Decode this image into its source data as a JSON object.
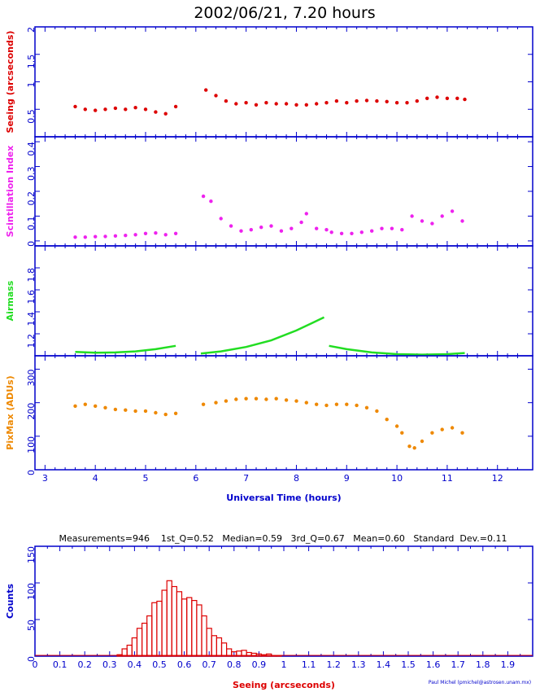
{
  "title": "2002/06/21, 7.20 hours",
  "colors": {
    "axis": "#0000cc",
    "seeing": "#dd0000",
    "scint": "#ee22ee",
    "airmass": "#22dd22",
    "pixmax": "#ee8800",
    "hist": "#dd0000"
  },
  "chart_data": [
    {
      "type": "scatter",
      "name": "seeing-panel",
      "ylabel": "Seeing (arcseconds)",
      "ylim": [
        0,
        2
      ],
      "yticks": [
        "0.5",
        "1",
        "1.5",
        "2"
      ],
      "xlim": [
        2.8,
        12.7
      ],
      "x": [
        3.6,
        3.8,
        4.0,
        4.2,
        4.4,
        4.6,
        4.8,
        5.0,
        5.2,
        5.4,
        5.6,
        6.2,
        6.4,
        6.6,
        6.8,
        7.0,
        7.2,
        7.4,
        7.6,
        7.8,
        8.0,
        8.2,
        8.4,
        8.6,
        8.8,
        9.0,
        9.2,
        9.4,
        9.6,
        9.8,
        10.0,
        10.2,
        10.4,
        10.6,
        10.8,
        11.0,
        11.2,
        11.35
      ],
      "y": [
        0.55,
        0.5,
        0.48,
        0.5,
        0.52,
        0.5,
        0.53,
        0.5,
        0.45,
        0.42,
        0.55,
        0.85,
        0.75,
        0.65,
        0.6,
        0.62,
        0.58,
        0.62,
        0.6,
        0.6,
        0.58,
        0.58,
        0.6,
        0.62,
        0.65,
        0.62,
        0.65,
        0.66,
        0.65,
        0.64,
        0.62,
        0.62,
        0.65,
        0.7,
        0.72,
        0.7,
        0.7,
        0.68
      ]
    },
    {
      "type": "scatter",
      "name": "scintillation-panel",
      "ylabel": "Scintillation Index",
      "ylim": [
        -0.02,
        0.42
      ],
      "yticks": [
        "0",
        "0.1",
        "0.2",
        "0.3",
        "0.4"
      ],
      "xlim": [
        2.8,
        12.7
      ],
      "x": [
        3.6,
        3.8,
        4.0,
        4.2,
        4.4,
        4.6,
        4.8,
        5.0,
        5.2,
        5.4,
        5.6,
        6.15,
        6.3,
        6.5,
        6.7,
        6.9,
        7.1,
        7.3,
        7.5,
        7.7,
        7.9,
        8.1,
        8.2,
        8.4,
        8.6,
        8.7,
        8.9,
        9.1,
        9.3,
        9.5,
        9.7,
        9.9,
        10.1,
        10.3,
        10.5,
        10.7,
        10.9,
        11.1,
        11.3
      ],
      "y": [
        0.015,
        0.015,
        0.017,
        0.018,
        0.02,
        0.022,
        0.025,
        0.03,
        0.032,
        0.025,
        0.03,
        0.18,
        0.16,
        0.09,
        0.06,
        0.04,
        0.045,
        0.055,
        0.06,
        0.04,
        0.05,
        0.075,
        0.11,
        0.05,
        0.045,
        0.035,
        0.03,
        0.03,
        0.035,
        0.04,
        0.05,
        0.05,
        0.045,
        0.1,
        0.08,
        0.07,
        0.1,
        0.12,
        0.08
      ]
    },
    {
      "type": "line",
      "name": "airmass-panel",
      "ylabel": "Airmass",
      "ylim": [
        1,
        2
      ],
      "yticks": [
        "1.2",
        "1.4",
        "1.6",
        "1.8"
      ],
      "xlim": [
        2.8,
        12.7
      ],
      "series": [
        {
          "x": [
            3.6,
            4.0,
            4.4,
            4.8,
            5.2,
            5.6
          ],
          "y": [
            1.035,
            1.028,
            1.03,
            1.04,
            1.06,
            1.09
          ]
        },
        {
          "x": [
            6.1,
            6.5,
            7.0,
            7.5,
            8.0,
            8.55
          ],
          "y": [
            1.02,
            1.04,
            1.08,
            1.14,
            1.23,
            1.35
          ]
        },
        {
          "x": [
            8.65,
            9.0,
            9.5,
            10.0,
            10.5,
            11.0,
            11.35
          ],
          "y": [
            1.09,
            1.06,
            1.03,
            1.015,
            1.01,
            1.015,
            1.025
          ]
        }
      ]
    },
    {
      "type": "scatter",
      "name": "pixmax-panel",
      "ylabel": "PixMax (ADUs)",
      "xlabel": "Universal Time (hours)",
      "ylim": [
        0,
        340
      ],
      "yticks": [
        "0",
        "100",
        "200",
        "300"
      ],
      "xlim": [
        2.8,
        12.7
      ],
      "xticks": [
        "3",
        "4",
        "5",
        "6",
        "7",
        "8",
        "9",
        "10",
        "11",
        "12"
      ],
      "x": [
        3.6,
        3.8,
        4.0,
        4.2,
        4.4,
        4.6,
        4.8,
        5.0,
        5.2,
        5.4,
        5.6,
        6.15,
        6.4,
        6.6,
        6.8,
        7.0,
        7.2,
        7.4,
        7.6,
        7.8,
        8.0,
        8.2,
        8.4,
        8.6,
        8.8,
        9.0,
        9.2,
        9.4,
        9.6,
        9.8,
        10.0,
        10.1,
        10.25,
        10.35,
        10.5,
        10.7,
        10.9,
        11.1,
        11.3
      ],
      "y": [
        190,
        195,
        190,
        185,
        180,
        178,
        175,
        175,
        170,
        165,
        168,
        195,
        200,
        205,
        210,
        212,
        212,
        210,
        212,
        208,
        205,
        200,
        195,
        192,
        195,
        195,
        192,
        185,
        175,
        150,
        130,
        110,
        70,
        65,
        85,
        110,
        120,
        125,
        110
      ]
    },
    {
      "type": "bar",
      "name": "seeing-histogram",
      "stats": "Measurements=946    1st_Q=0.52   Median=0.59   3rd_Q=0.67   Mean=0.60   Standard  Dev.=0.11",
      "ylabel": "Counts",
      "xlabel": "Seeing (arcseconds)",
      "credit": "Paul Michel (pmichel@astrosen.unam.mx)",
      "ylim": [
        0,
        150
      ],
      "yticks": [
        "0",
        "50",
        "100",
        "150"
      ],
      "xlim": [
        0,
        2
      ],
      "xticks": [
        "0",
        "0.1",
        "0.2",
        "0.3",
        "0.4",
        "0.5",
        "0.6",
        "0.7",
        "0.8",
        "0.9",
        "1",
        "1.1",
        "1.2",
        "1.3",
        "1.4",
        "1.5",
        "1.6",
        "1.7",
        "1.8",
        "1.9"
      ],
      "bin_start": [
        0.33,
        0.35,
        0.37,
        0.39,
        0.41,
        0.43,
        0.45,
        0.47,
        0.49,
        0.51,
        0.53,
        0.55,
        0.57,
        0.59,
        0.61,
        0.63,
        0.65,
        0.67,
        0.69,
        0.71,
        0.73,
        0.75,
        0.77,
        0.79,
        0.81,
        0.83,
        0.85,
        0.87,
        0.89,
        0.91,
        0.93,
        0.95,
        0.97
      ],
      "bin_width": 0.02,
      "values": [
        2,
        10,
        15,
        25,
        38,
        45,
        55,
        73,
        75,
        90,
        103,
        95,
        88,
        78,
        80,
        76,
        70,
        55,
        38,
        28,
        25,
        18,
        10,
        6,
        7,
        8,
        5,
        4,
        3,
        2,
        3,
        1,
        1
      ]
    }
  ]
}
